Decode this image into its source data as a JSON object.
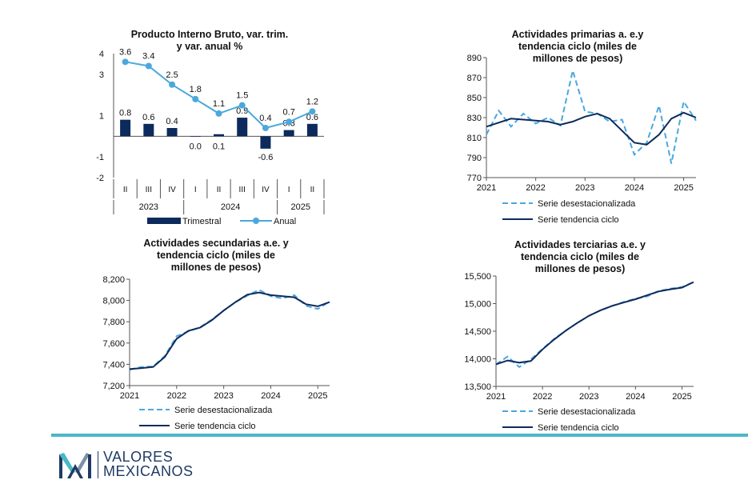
{
  "chart_data": [
    {
      "type": "bar+line",
      "title": [
        "Producto Interno Bruto, var. trim.",
        "y var. anual %"
      ],
      "categories": [
        "II",
        "III",
        "IV",
        "I",
        "II",
        "III",
        "IV",
        "I",
        "II"
      ],
      "years": [
        {
          "label": "2023",
          "from": 0,
          "to": 2
        },
        {
          "label": "2024",
          "from": 3,
          "to": 6
        },
        {
          "label": "2025",
          "from": 7,
          "to": 8
        }
      ],
      "series": [
        {
          "name": "Trimestral",
          "kind": "bar",
          "color": "#0d2a5c",
          "values": [
            0.8,
            0.6,
            0.4,
            0.0,
            0.1,
            0.9,
            -0.6,
            0.3,
            0.6
          ],
          "labels": [
            "0.8",
            "0.6",
            "0.4",
            "0.0",
            "0.1",
            "0.9",
            "-0.6",
            "0.3",
            "0.6"
          ]
        },
        {
          "name": "Anual",
          "kind": "line",
          "color": "#4aa8dd",
          "values": [
            3.6,
            3.4,
            2.5,
            1.8,
            1.1,
            1.5,
            0.4,
            0.7,
            1.2
          ],
          "labels": [
            "3.6",
            "3.4",
            "2.5",
            "1.8",
            "1.1",
            "1.5",
            "0.4",
            "0.7",
            "1.2"
          ]
        }
      ],
      "yticks": [
        "4",
        "3",
        "1",
        "-1",
        "-2"
      ],
      "ytick_values": [
        4,
        3,
        1,
        -1,
        -2
      ],
      "ylim": [
        -2,
        4
      ]
    },
    {
      "type": "line",
      "title": [
        "Actividades primarias a. e.y",
        "tendencia ciclo (miles de",
        "millones de pesos)"
      ],
      "x": [
        2021.0,
        2021.25,
        2021.5,
        2021.75,
        2022.0,
        2022.25,
        2022.5,
        2022.75,
        2023.0,
        2023.25,
        2023.5,
        2023.75,
        2024.0,
        2024.25,
        2024.5,
        2024.75,
        2025.0,
        2025.25
      ],
      "series": [
        {
          "name": "Serie desestacionalizada",
          "style": "dashed",
          "color": "#4aa8dd",
          "values": [
            813,
            837,
            821,
            834,
            824,
            830,
            822,
            877,
            836,
            834,
            826,
            828,
            793,
            805,
            842,
            784,
            846,
            827
          ]
        },
        {
          "name": "Serie tendencia ciclo",
          "style": "solid",
          "color": "#0d2a5c",
          "values": [
            821,
            825,
            829,
            828,
            827,
            826,
            823,
            826,
            831,
            834,
            829,
            817,
            805,
            803,
            813,
            829,
            835,
            830
          ]
        }
      ],
      "yticks": [
        "890",
        "870",
        "850",
        "830",
        "810",
        "790",
        "770"
      ],
      "ytick_values": [
        890,
        870,
        850,
        830,
        810,
        790,
        770
      ],
      "xticks": [
        "2021",
        "2022",
        "2023",
        "2024",
        "2025"
      ],
      "xtick_values": [
        2021,
        2022,
        2023,
        2024,
        2025
      ],
      "ylim": [
        770,
        890
      ]
    },
    {
      "type": "line",
      "title": [
        "Actividades secundarias a.e. y",
        "tendencia ciclo (miles de",
        "millones de pesos)"
      ],
      "x": [
        2021.0,
        2021.25,
        2021.5,
        2021.75,
        2022.0,
        2022.25,
        2022.5,
        2022.75,
        2023.0,
        2023.25,
        2023.5,
        2023.75,
        2024.0,
        2024.25,
        2024.5,
        2024.75,
        2025.0,
        2025.25
      ],
      "series": [
        {
          "name": "Serie desestacionalizada",
          "style": "dashed",
          "color": "#4aa8dd",
          "values": [
            7350,
            7375,
            7380,
            7480,
            7665,
            7710,
            7750,
            7820,
            7905,
            7985,
            8045,
            8100,
            8040,
            8020,
            8050,
            7950,
            7920,
            7990
          ]
        },
        {
          "name": "Serie tendencia ciclo",
          "style": "solid",
          "color": "#0d2a5c",
          "values": [
            7355,
            7365,
            7375,
            7470,
            7640,
            7715,
            7745,
            7815,
            7905,
            7985,
            8055,
            8075,
            8050,
            8040,
            8030,
            7965,
            7945,
            7985
          ]
        }
      ],
      "yticks": [
        "8,200",
        "8,000",
        "7,800",
        "7,600",
        "7,400",
        "7,200"
      ],
      "ytick_values": [
        8200,
        8000,
        7800,
        7600,
        7400,
        7200
      ],
      "xticks": [
        "2021",
        "2022",
        "2023",
        "2024",
        "2025"
      ],
      "xtick_values": [
        2021,
        2022,
        2023,
        2024,
        2025
      ],
      "ylim": [
        7200,
        8200
      ]
    },
    {
      "type": "line",
      "title": [
        "Actividades terciarias a.e. y",
        "tendencia ciclo (miles de",
        "millones de pesos)"
      ],
      "x": [
        2021.0,
        2021.25,
        2021.5,
        2021.75,
        2022.0,
        2022.25,
        2022.5,
        2022.75,
        2023.0,
        2023.25,
        2023.5,
        2023.75,
        2024.0,
        2024.25,
        2024.5,
        2024.75,
        2025.0,
        2025.25
      ],
      "series": [
        {
          "name": "Serie desestacionalizada",
          "style": "dashed",
          "color": "#4aa8dd",
          "values": [
            13900,
            14040,
            13850,
            13990,
            14180,
            14360,
            14510,
            14650,
            14780,
            14880,
            14960,
            15030,
            15090,
            15130,
            15230,
            15270,
            15300,
            15390
          ]
        },
        {
          "name": "Serie tendencia ciclo",
          "style": "solid",
          "color": "#0d2a5c",
          "values": [
            13900,
            13970,
            13930,
            13960,
            14170,
            14350,
            14510,
            14650,
            14780,
            14880,
            14960,
            15020,
            15080,
            15150,
            15220,
            15260,
            15290,
            15390
          ]
        }
      ],
      "yticks": [
        "15,500",
        "15,000",
        "14,500",
        "14,000",
        "13,500"
      ],
      "ytick_values": [
        15500,
        15000,
        14500,
        14000,
        13500
      ],
      "xticks": [
        "2021",
        "2022",
        "2023",
        "2024",
        "2025"
      ],
      "xtick_values": [
        2021,
        2022,
        2023,
        2024,
        2025
      ],
      "ylim": [
        13500,
        15500
      ]
    }
  ],
  "footer": {
    "logo_line1": "VALORES",
    "logo_line2": "MEXICANOS",
    "rule_color": "#4bb8c6"
  }
}
